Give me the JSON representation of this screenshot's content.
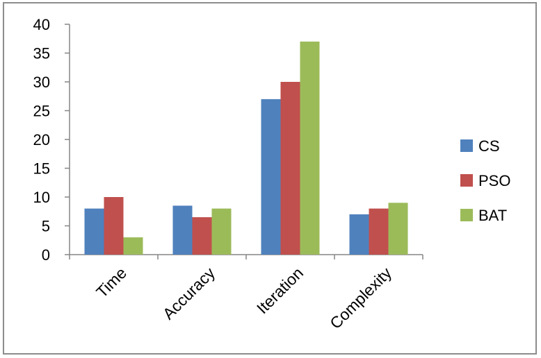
{
  "chart_data": {
    "type": "bar",
    "title": "",
    "xlabel": "",
    "ylabel": "",
    "categories": [
      "Time",
      "Accuracy",
      "Iteration",
      "Complexity"
    ],
    "series": [
      {
        "name": "CS",
        "color": "#4f81bd",
        "values": [
          8,
          8.5,
          27,
          7
        ]
      },
      {
        "name": "PSO",
        "color": "#c0504d",
        "values": [
          10,
          6.5,
          30,
          8
        ]
      },
      {
        "name": "BAT",
        "color": "#9bbb59",
        "values": [
          3,
          8,
          37,
          9
        ]
      }
    ],
    "ylim": [
      0,
      40
    ],
    "yticks": [
      0,
      5,
      10,
      15,
      20,
      25,
      30,
      35,
      40
    ],
    "legend_position": "right",
    "grid": false
  }
}
